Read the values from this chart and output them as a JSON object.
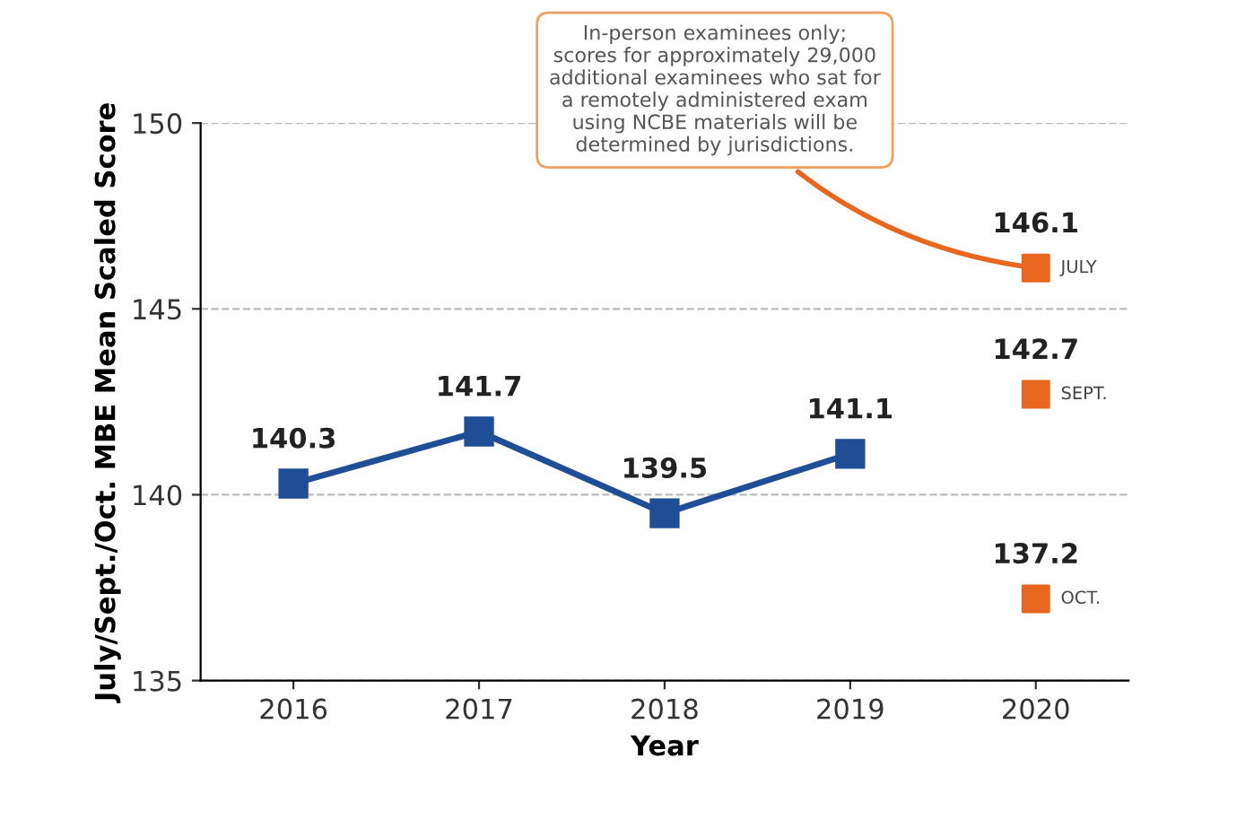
{
  "chart_data": {
    "type": "line",
    "xlabel": "Year",
    "ylabel": "July/Sept./Oct. MBE Mean Scaled Score",
    "categories": [
      "2016",
      "2017",
      "2018",
      "2019",
      "2020"
    ],
    "series": [
      {
        "color": "#1f4e96",
        "values": [
          140.3,
          141.7,
          139.5,
          141.1,
          null
        ]
      },
      {
        "type": "scatter",
        "name": "JULY",
        "color": "#e8661e",
        "values": [
          null,
          null,
          null,
          null,
          146.1
        ]
      },
      {
        "type": "scatter",
        "name": "SEPT.",
        "color": "#e8661e",
        "values": [
          null,
          null,
          null,
          null,
          142.7
        ]
      },
      {
        "type": "scatter",
        "name": "OCT.",
        "color": "#e8661e",
        "values": [
          null,
          null,
          null,
          null,
          137.2
        ]
      }
    ],
    "ylim": [
      135,
      150
    ],
    "yticks": [
      135,
      140,
      145,
      150
    ],
    "grid": "y",
    "legend": false,
    "marker": "square",
    "line_style": "solid",
    "data_labels": true,
    "annotations": [
      {
        "text": "In-person examinees only;\nscores for approximately 29,000\nadditional examinees who sat for\na remotely administered exam\nusing NCBE materials will be\ndetermined by jurisdictions.",
        "x": "2020",
        "y": 146.1
      }
    ]
  }
}
